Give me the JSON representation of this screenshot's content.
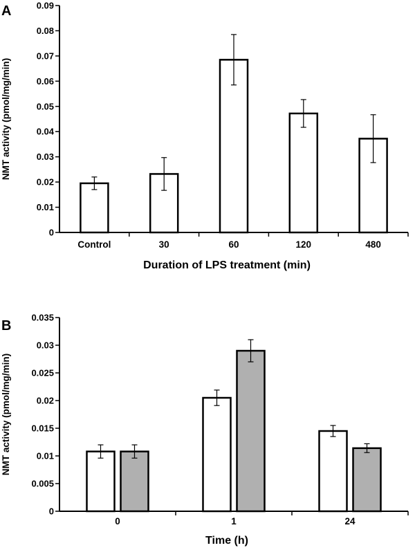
{
  "chart_data": [
    {
      "panel": "A",
      "type": "bar",
      "title": "",
      "xlabel": "Duration of LPS treatment (min)",
      "ylabel": "NMT activity (pmol/mg/min)",
      "ylim": [
        0,
        0.09
      ],
      "yticks": [
        "0",
        "0.01",
        "0.02",
        "0.03",
        "0.04",
        "0.05",
        "0.06",
        "0.07",
        "0.08",
        "0.09"
      ],
      "categories": [
        "Control",
        "30",
        "60",
        "120",
        "480"
      ],
      "series": [
        {
          "color": "#ffffff",
          "values": [
            0.0195,
            0.0232,
            0.0685,
            0.0472,
            0.0372
          ],
          "errors": [
            0.0025,
            0.0065,
            0.01,
            0.0055,
            0.0095
          ]
        }
      ],
      "grid": false,
      "legend": "none"
    },
    {
      "panel": "B",
      "type": "bar",
      "title": "",
      "xlabel": "Time (h)",
      "ylabel": "NMT activity (pmol/mg/min)",
      "ylim": [
        0,
        0.035
      ],
      "yticks": [
        "0",
        "0.005",
        "0.01",
        "0.015",
        "0.02",
        "0.025",
        "0.03",
        "0.035"
      ],
      "categories": [
        "0",
        "1",
        "24"
      ],
      "series": [
        {
          "color": "#ffffff",
          "values": [
            0.0108,
            0.0205,
            0.0145
          ],
          "errors": [
            0.0012,
            0.0014,
            0.001
          ]
        },
        {
          "color": "#b0b0b0",
          "values": [
            0.0108,
            0.029,
            0.0114
          ],
          "errors": [
            0.0012,
            0.002,
            0.0008
          ]
        }
      ],
      "grid": false,
      "legend": "none"
    }
  ]
}
